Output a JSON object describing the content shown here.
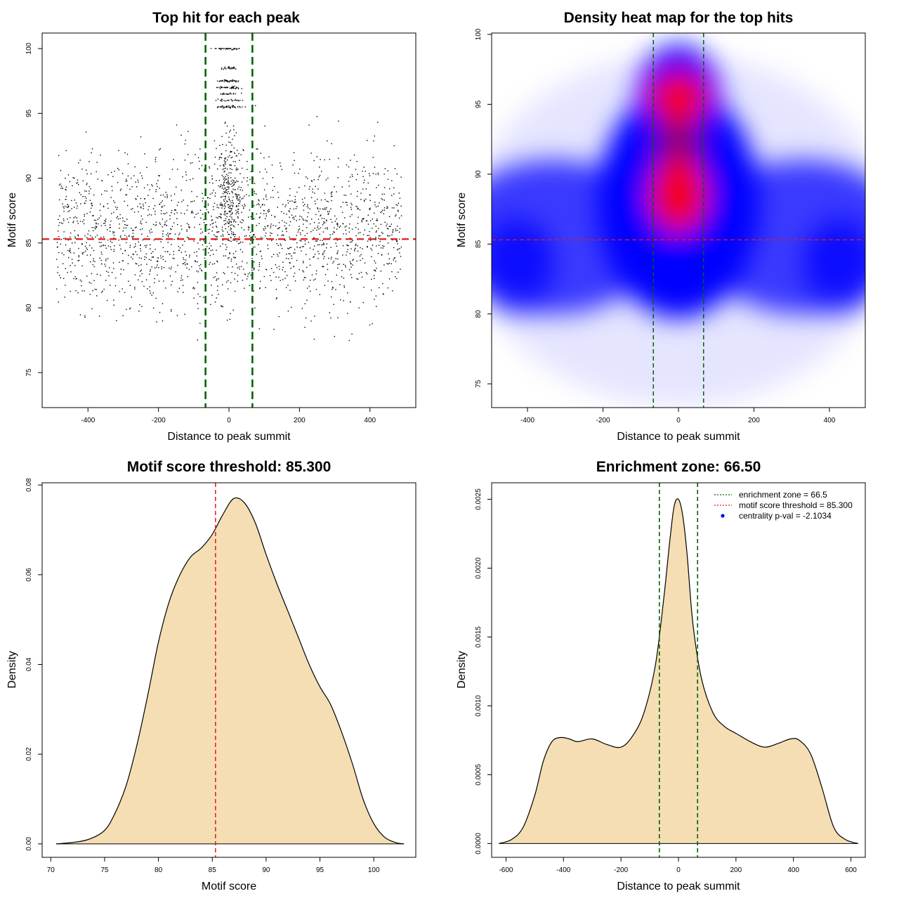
{
  "chart_data": [
    {
      "type": "scatter",
      "title": "Top hit for each peak",
      "xlabel": "Distance to peak summit",
      "ylabel": "Motif score",
      "xlim": [
        -530,
        530
      ],
      "ylim": [
        72.3,
        101.2
      ],
      "xticks": [
        "-400",
        "-200",
        "0",
        "200",
        "400"
      ],
      "yticks": [
        "75",
        "80",
        "85",
        "90",
        "95",
        "100"
      ],
      "threshold_y": 85.3,
      "enrichment_zone": [
        -66.5,
        66.5
      ],
      "point_count": 2400,
      "colors": {
        "points": "#000000",
        "threshold": "#e31a1c",
        "zone": "#006400"
      }
    },
    {
      "type": "heatmap",
      "title": "Density heat map for the top hits",
      "xlabel": "Distance to peak summit",
      "ylabel": "Motif score",
      "xlim": [
        -495,
        495
      ],
      "ylim": [
        73.3,
        100.1
      ],
      "xticks": [
        "-400",
        "-200",
        "0",
        "200",
        "400"
      ],
      "yticks": [
        "75",
        "80",
        "85",
        "90",
        "95",
        "100"
      ],
      "threshold_y": 85.3,
      "enrichment_zone": [
        -66.5,
        66.5
      ],
      "hotspots": [
        {
          "x": 0,
          "y": 95.5,
          "intensity": "high"
        },
        {
          "x": 0,
          "y": 88.5,
          "intensity": "high"
        },
        {
          "x": -420,
          "y": 84,
          "intensity": "medium"
        },
        {
          "x": 420,
          "y": 84,
          "intensity": "medium"
        }
      ],
      "colors": {
        "low": "#ffffff",
        "mid": "#0000ff",
        "high": "#ff0000",
        "threshold": "#e31a1c",
        "zone": "#006400"
      }
    },
    {
      "type": "area",
      "title": "Motif score threshold: 85.300",
      "xlabel": "Motif score",
      "ylabel": "Density",
      "xlim": [
        69.2,
        103.9
      ],
      "ylim": [
        -0.003,
        0.0805
      ],
      "xticks": [
        "70",
        "75",
        "80",
        "85",
        "90",
        "95",
        "100"
      ],
      "yticks": [
        "0.00",
        "0.02",
        "0.04",
        "0.06",
        "0.08"
      ],
      "threshold_x": 85.3,
      "x": [
        70.5,
        72,
        73.5,
        75,
        76,
        77,
        78,
        79,
        80,
        81,
        82,
        83,
        84,
        85,
        86,
        87,
        88,
        89,
        90,
        91,
        92,
        93,
        94,
        95,
        96,
        97,
        98,
        99,
        100,
        101,
        102,
        102.8
      ],
      "y": [
        0.0,
        0.0003,
        0.001,
        0.003,
        0.007,
        0.013,
        0.022,
        0.033,
        0.045,
        0.054,
        0.06,
        0.064,
        0.066,
        0.069,
        0.0735,
        0.077,
        0.076,
        0.0715,
        0.0645,
        0.058,
        0.052,
        0.046,
        0.04,
        0.035,
        0.031,
        0.025,
        0.018,
        0.01,
        0.0045,
        0.0015,
        0.0003,
        0.0
      ],
      "colors": {
        "fill": "#f5deb3",
        "line": "#000000",
        "threshold": "#e31a1c"
      }
    },
    {
      "type": "area",
      "title": "Enrichment zone: 66.50",
      "xlabel": "Distance to peak summit",
      "ylabel": "Density",
      "xlim": [
        -650,
        650
      ],
      "ylim": [
        -0.0001,
        0.00262
      ],
      "xticks": [
        "-600",
        "-400",
        "-200",
        "0",
        "200",
        "400",
        "600"
      ],
      "yticks": [
        "0.0000",
        "0.0005",
        "0.0010",
        "0.0015",
        "0.0020",
        "0.0025"
      ],
      "enrichment_zone": [
        -66.5,
        66.5
      ],
      "x": [
        -625,
        -580,
        -540,
        -500,
        -470,
        -440,
        -410,
        -380,
        -350,
        -300,
        -250,
        -200,
        -160,
        -120,
        -80,
        -50,
        -30,
        -15,
        0,
        15,
        30,
        50,
        80,
        120,
        160,
        200,
        250,
        300,
        350,
        390,
        420,
        460,
        500,
        540,
        580,
        625
      ],
      "y": [
        0.0,
        3e-05,
        0.00012,
        0.00035,
        0.0006,
        0.00074,
        0.00077,
        0.00076,
        0.00074,
        0.00076,
        0.00072,
        0.0007,
        0.00078,
        0.00095,
        0.0013,
        0.0018,
        0.0022,
        0.00245,
        0.0025,
        0.00238,
        0.0021,
        0.0016,
        0.0012,
        0.00095,
        0.00085,
        0.0008,
        0.00074,
        0.0007,
        0.00073,
        0.00076,
        0.00075,
        0.00065,
        0.0004,
        0.00012,
        3e-05,
        0.0
      ],
      "legend": [
        {
          "label": "enrichment zone = 66.5",
          "style": "dotted",
          "color": "#006400"
        },
        {
          "label": "motif score threshold = 85.300",
          "style": "dotted",
          "color": "#e31a1c"
        },
        {
          "label": "centrality p-val = -2.1034",
          "style": "point",
          "color": "#0000ff"
        }
      ],
      "legend_position": "top-right",
      "colors": {
        "fill": "#f5deb3",
        "line": "#000000",
        "zone": "#006400"
      }
    }
  ]
}
